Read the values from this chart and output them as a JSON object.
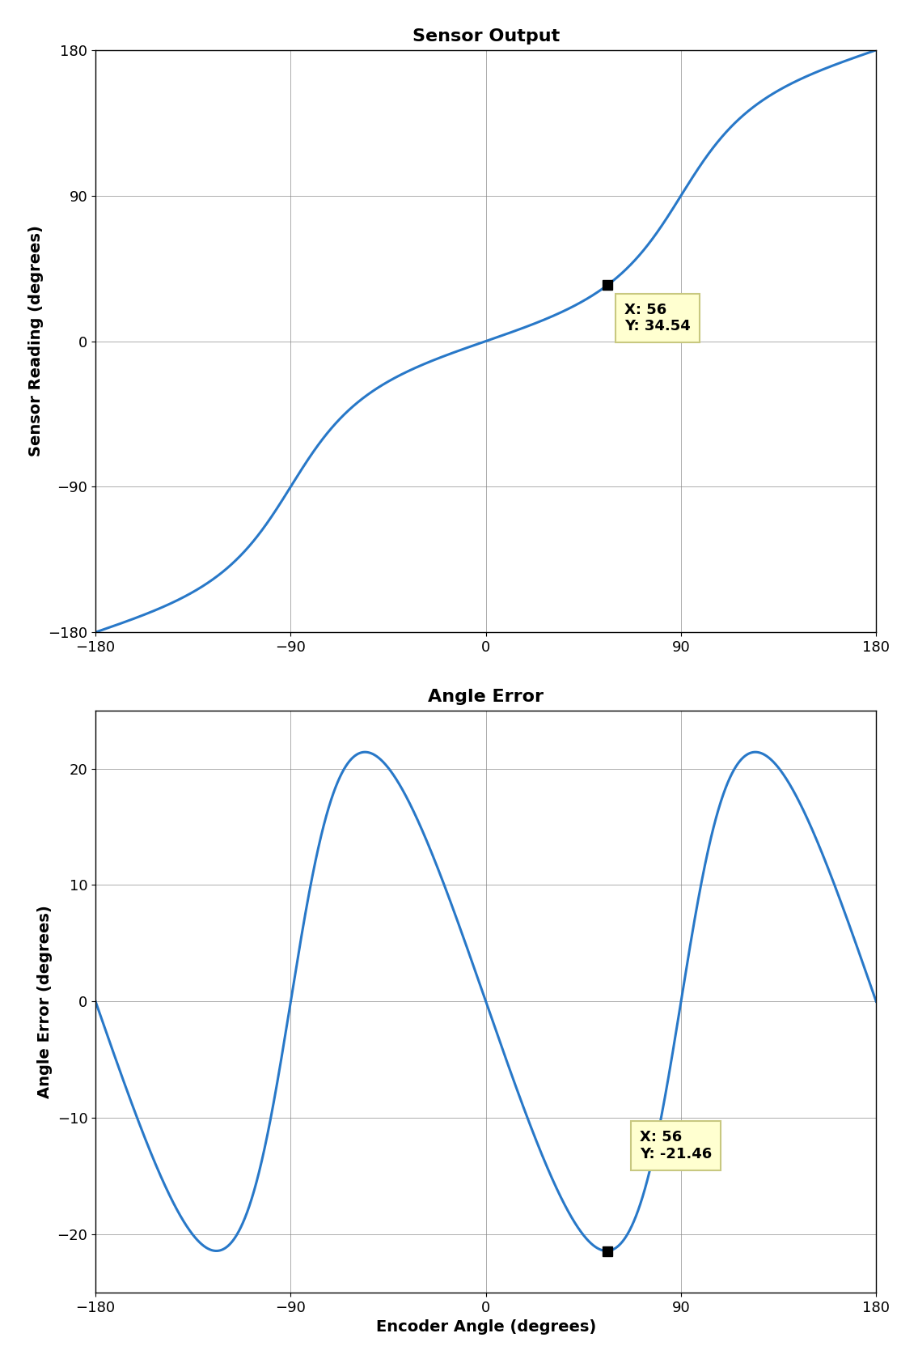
{
  "title1": "Sensor Output",
  "title2": "Angle Error",
  "ylabel1": "Sensor Reading (degrees)",
  "ylabel2": "Angle Error (degrees)",
  "xlabel": "Encoder Angle (degrees)",
  "xlim": [
    -180,
    180
  ],
  "ylim1": [
    -180,
    180
  ],
  "ylim2": [
    -25,
    25
  ],
  "xticks": [
    -180,
    -90,
    0,
    90,
    180
  ],
  "yticks1": [
    -180,
    -90,
    0,
    90,
    180
  ],
  "yticks2": [
    -20,
    -10,
    0,
    10,
    20
  ],
  "marker_x": 56,
  "marker_y1": 34.54,
  "marker_y2": -21.46,
  "sensor_k": 0.465,
  "line_color": "#2878c8",
  "marker_color": "#000000",
  "annotation_bg": "#ffffd0",
  "annotation_border": "#c8c880",
  "line_width": 2.2,
  "title_fontsize": 16,
  "label_fontsize": 14,
  "tick_fontsize": 13,
  "annotation_fontsize": 13,
  "fig_width": 11.35,
  "fig_height": 16.84
}
